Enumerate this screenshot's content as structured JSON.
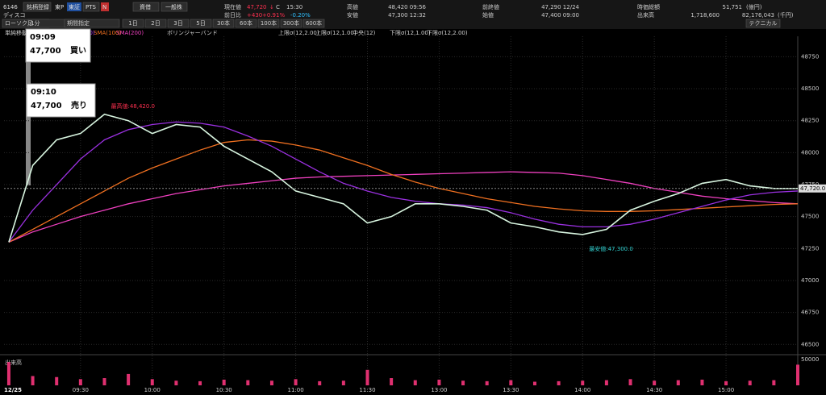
{
  "header": {
    "code": "6146",
    "register": "銘柄登録",
    "market": "東P",
    "exchange": "東証",
    "pts": "PTS",
    "n": "N",
    "name": "ディスコ",
    "btn_credit": "資借",
    "btn_general": "一般株",
    "price_label": "現在値",
    "price": "47,720",
    "arrow": "↓",
    "c": "C",
    "time": "15:30",
    "change_label": "前日比",
    "change": "+430",
    "change_pct": "+0.91%",
    "change_pct2": "-0.20%",
    "high_label": "高値",
    "high": "48,420 09:56",
    "low_label": "安値",
    "low": "47,300 12:32",
    "prev_label": "前終値",
    "prev": "47,290 12/24",
    "open_label": "始値",
    "open": "47,400 09:00",
    "cap_label": "時価総額",
    "cap": "51,751",
    "cap_unit": "(億円)",
    "vol_label": "出来高",
    "vol": "1,718,600",
    "turnover": "82,176,043",
    "turnover_unit": "(千円)"
  },
  "toolbar": {
    "chart_kind": "ローソク足",
    "interval": "1分",
    "period": "期間指定",
    "ranges": [
      "1日",
      "2日",
      "3日",
      "5日",
      "30本",
      "60本",
      "100本",
      "300本",
      "600本"
    ],
    "technical": "テクニカル"
  },
  "legend": {
    "sma": "単純移動平均",
    "bollinger": "ボリンジャーバンド",
    "bands": [
      "上限σ(12,2.00)",
      "上限σ(12,1.00)",
      "中央(12)",
      "下限σ(12,1.00)",
      "下限σ(12,2.00)"
    ]
  },
  "popups": [
    {
      "time": "09:09",
      "price": "47,700",
      "side": "買い"
    },
    {
      "time": "09:10",
      "price": "47,700",
      "side": "売り"
    }
  ],
  "chart_data": {
    "type": "line",
    "date": "12/25",
    "x": [
      0,
      10,
      20,
      30,
      40,
      50,
      60,
      70,
      80,
      90,
      100,
      110,
      120,
      130,
      140,
      150,
      160,
      170,
      180,
      190,
      200,
      210,
      220,
      230,
      240,
      250,
      260,
      270,
      280,
      290,
      300,
      310,
      320,
      330
    ],
    "series": [
      {
        "color": "#d8f5e0",
        "values": [
          47300,
          47900,
          48100,
          48150,
          48300,
          48250,
          48150,
          48220,
          48200,
          48050,
          47950,
          47850,
          47700,
          47650,
          47600,
          47450,
          47500,
          47600,
          47600,
          47580,
          47550,
          47450,
          47420,
          47380,
          47360,
          47400,
          47550,
          47620,
          47680,
          47760,
          47790,
          47740,
          47720,
          47720
        ]
      },
      {
        "name": "SMA(50)",
        "color": "#9a30e0",
        "values": [
          47300,
          47550,
          47750,
          47950,
          48100,
          48180,
          48220,
          48240,
          48230,
          48200,
          48130,
          48050,
          47950,
          47850,
          47760,
          47700,
          47650,
          47620,
          47600,
          47590,
          47570,
          47530,
          47480,
          47440,
          47420,
          47420,
          47440,
          47480,
          47530,
          47580,
          47630,
          47670,
          47690,
          47700
        ]
      },
      {
        "name": "SMA(100)",
        "color": "#f07020",
        "values": [
          47300,
          47400,
          47500,
          47600,
          47700,
          47800,
          47880,
          47950,
          48020,
          48080,
          48100,
          48090,
          48060,
          48020,
          47960,
          47900,
          47830,
          47770,
          47720,
          47680,
          47640,
          47610,
          47580,
          47560,
          47545,
          47540,
          47540,
          47545,
          47555,
          47565,
          47575,
          47585,
          47595,
          47600
        ]
      },
      {
        "name": "SMA(200)",
        "color": "#f040c0",
        "values": [
          47300,
          47380,
          47440,
          47500,
          47550,
          47600,
          47640,
          47680,
          47710,
          47740,
          47760,
          47780,
          47800,
          47810,
          47815,
          47820,
          47825,
          47830,
          47835,
          47840,
          47845,
          47850,
          47845,
          47840,
          47820,
          47790,
          47760,
          47720,
          47690,
          47660,
          47640,
          47625,
          47610,
          47600
        ]
      }
    ],
    "xlim": [
      -2,
      330
    ],
    "xticks": [
      {
        "value": 30,
        "label": "09:30"
      },
      {
        "value": 60,
        "label": "10:00"
      },
      {
        "value": 90,
        "label": "10:30"
      },
      {
        "value": 120,
        "label": "11:00"
      },
      {
        "value": 150,
        "label": "11:30"
      },
      {
        "value": 180,
        "label": "13:00"
      },
      {
        "value": 210,
        "label": "13:30"
      },
      {
        "value": 240,
        "label": "14:00"
      },
      {
        "value": 270,
        "label": "14:30"
      },
      {
        "value": 300,
        "label": "15:00"
      }
    ],
    "ylim": [
      46420,
      48910
    ],
    "yticks": [
      48750,
      48500,
      48250,
      48000,
      47750,
      47500,
      47250,
      47000,
      46750,
      46500
    ],
    "grid": true,
    "annotations": {
      "high": "最高値:48,420.0",
      "low": "最安値:47,300.0",
      "last": "47,720.0"
    },
    "volume": {
      "label": "出来高",
      "color": "#e03070",
      "ylim": [
        0,
        50000
      ],
      "yticks": [
        50000
      ],
      "values": [
        45000,
        18000,
        16000,
        12000,
        14000,
        22000,
        12000,
        9000,
        8000,
        11000,
        10000,
        9000,
        12000,
        8000,
        9000,
        30000,
        14000,
        10000,
        11000,
        9000,
        8000,
        10000,
        7000,
        8000,
        9000,
        10000,
        12000,
        9000,
        10000,
        11000,
        8000,
        9000,
        10000,
        40000
      ]
    }
  }
}
